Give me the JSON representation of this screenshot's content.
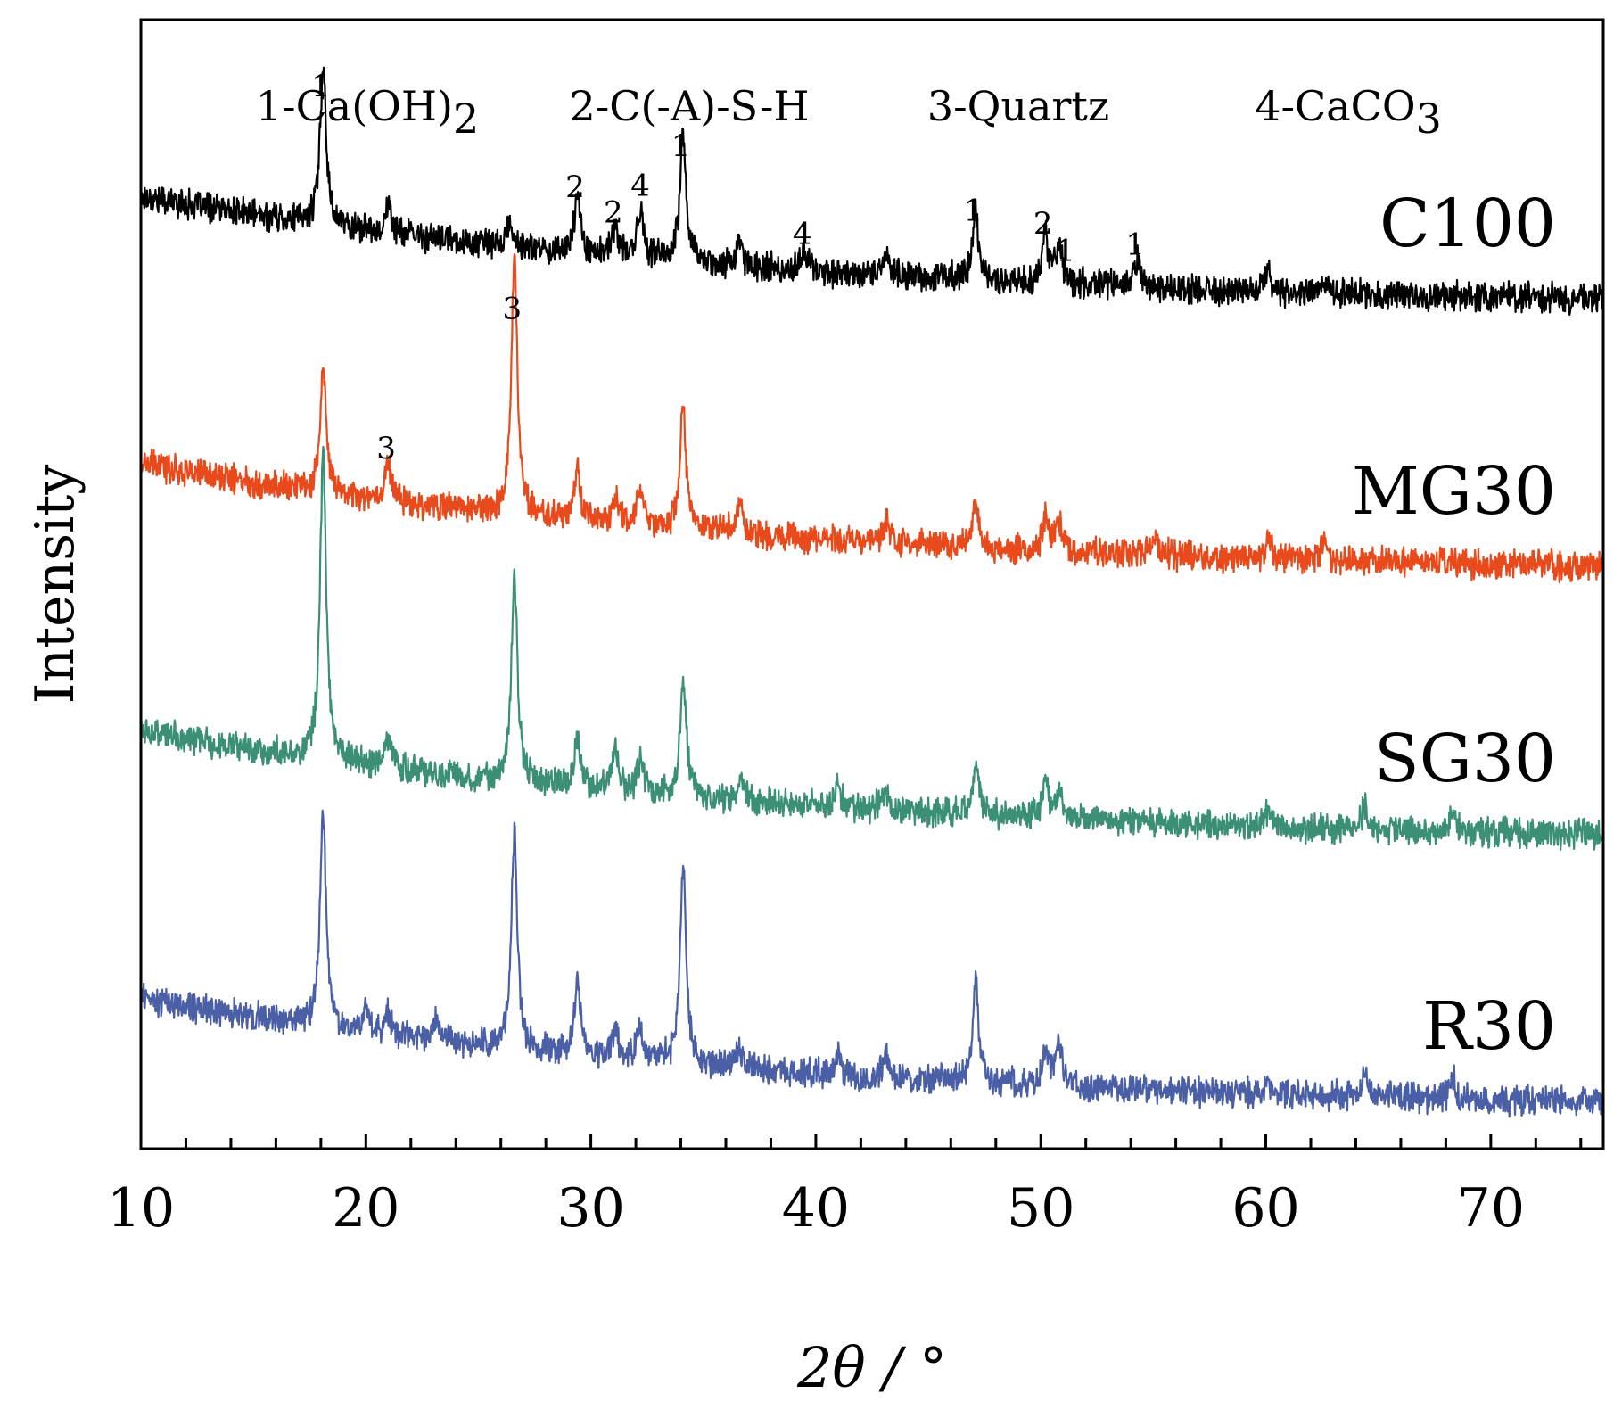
{
  "chart_data": {
    "type": "line",
    "title": "",
    "xlabel": "2θ / °",
    "ylabel": "Intensity",
    "xlim": [
      10,
      75
    ],
    "x_ticks": [
      10,
      20,
      30,
      40,
      50,
      60,
      70
    ],
    "x_tick_labels": [
      "10",
      "20",
      "30",
      "40",
      "50",
      "60",
      "70"
    ],
    "y_ticks_shown": false,
    "legend": [
      {
        "marker": "1",
        "phase_prefix": "1-Ca(OH)",
        "sub": "2"
      },
      {
        "marker": "2",
        "phase_prefix": "2-C(-A)-S-H",
        "sub": ""
      },
      {
        "marker": "3",
        "phase_prefix": "3-Quartz",
        "sub": ""
      },
      {
        "marker": "4",
        "phase_prefix": "4-CaCO",
        "sub": "3"
      }
    ],
    "series": [
      {
        "name": "C100",
        "color": "#000000",
        "offset": 3.0,
        "baseline": {
          "start": 0.55,
          "end": 0.12,
          "decay": 0.035
        },
        "peaks": [
          {
            "x": 18.1,
            "h": 0.6
          },
          {
            "x": 21.0,
            "h": 0.1
          },
          {
            "x": 26.4,
            "h": 0.08
          },
          {
            "x": 29.4,
            "h": 0.22
          },
          {
            "x": 31.1,
            "h": 0.1
          },
          {
            "x": 32.2,
            "h": 0.18
          },
          {
            "x": 34.1,
            "h": 0.48
          },
          {
            "x": 36.6,
            "h": 0.08
          },
          {
            "x": 39.5,
            "h": 0.07
          },
          {
            "x": 43.1,
            "h": 0.08
          },
          {
            "x": 47.1,
            "h": 0.24
          },
          {
            "x": 50.2,
            "h": 0.18
          },
          {
            "x": 50.8,
            "h": 0.15
          },
          {
            "x": 54.3,
            "h": 0.1
          },
          {
            "x": 60.1,
            "h": 0.07
          },
          {
            "x": 62.6,
            "h": 0.05
          }
        ]
      },
      {
        "name": "MG30",
        "color": "#E84A1C",
        "offset": 2.0,
        "baseline": {
          "start": 0.55,
          "end": 0.12,
          "decay": 0.035
        },
        "peaks": [
          {
            "x": 18.1,
            "h": 0.45
          },
          {
            "x": 21.0,
            "h": 0.15
          },
          {
            "x": 26.6,
            "h": 0.95
          },
          {
            "x": 29.4,
            "h": 0.18
          },
          {
            "x": 31.1,
            "h": 0.1
          },
          {
            "x": 32.2,
            "h": 0.14
          },
          {
            "x": 34.1,
            "h": 0.45
          },
          {
            "x": 36.6,
            "h": 0.1
          },
          {
            "x": 43.1,
            "h": 0.08
          },
          {
            "x": 47.1,
            "h": 0.16
          },
          {
            "x": 50.2,
            "h": 0.12
          },
          {
            "x": 50.8,
            "h": 0.1
          },
          {
            "x": 55.0,
            "h": 0.07
          },
          {
            "x": 60.1,
            "h": 0.07
          },
          {
            "x": 62.6,
            "h": 0.07
          }
        ]
      },
      {
        "name": "SG30",
        "color": "#3A8F76",
        "offset": 1.0,
        "baseline": {
          "start": 0.55,
          "end": 0.12,
          "decay": 0.035
        },
        "peaks": [
          {
            "x": 18.1,
            "h": 1.15
          },
          {
            "x": 21.0,
            "h": 0.12
          },
          {
            "x": 26.6,
            "h": 0.78
          },
          {
            "x": 29.4,
            "h": 0.18
          },
          {
            "x": 31.1,
            "h": 0.16
          },
          {
            "x": 32.2,
            "h": 0.12
          },
          {
            "x": 34.1,
            "h": 0.45
          },
          {
            "x": 36.6,
            "h": 0.08
          },
          {
            "x": 41.0,
            "h": 0.07
          },
          {
            "x": 43.1,
            "h": 0.08
          },
          {
            "x": 47.1,
            "h": 0.2
          },
          {
            "x": 50.2,
            "h": 0.14
          },
          {
            "x": 50.8,
            "h": 0.1
          },
          {
            "x": 60.1,
            "h": 0.06
          },
          {
            "x": 64.4,
            "h": 0.08
          },
          {
            "x": 68.3,
            "h": 0.06
          }
        ]
      },
      {
        "name": "R30",
        "color": "#4A5FA5",
        "offset": 0.0,
        "baseline": {
          "start": 0.55,
          "end": 0.12,
          "decay": 0.035
        },
        "peaks": [
          {
            "x": 18.1,
            "h": 0.8
          },
          {
            "x": 20.0,
            "h": 0.08
          },
          {
            "x": 21.0,
            "h": 0.08
          },
          {
            "x": 23.1,
            "h": 0.08
          },
          {
            "x": 26.6,
            "h": 0.8
          },
          {
            "x": 29.4,
            "h": 0.28
          },
          {
            "x": 31.1,
            "h": 0.1
          },
          {
            "x": 32.2,
            "h": 0.12
          },
          {
            "x": 34.1,
            "h": 0.75
          },
          {
            "x": 36.6,
            "h": 0.08
          },
          {
            "x": 41.0,
            "h": 0.06
          },
          {
            "x": 43.1,
            "h": 0.08
          },
          {
            "x": 47.1,
            "h": 0.36
          },
          {
            "x": 50.2,
            "h": 0.14
          },
          {
            "x": 50.8,
            "h": 0.18
          },
          {
            "x": 60.1,
            "h": 0.06
          },
          {
            "x": 64.4,
            "h": 0.08
          },
          {
            "x": 68.3,
            "h": 0.08
          }
        ]
      }
    ],
    "peak_annotations": [
      {
        "text": "1",
        "x": 18.0,
        "series": "C100"
      },
      {
        "text": "2",
        "x": 29.3,
        "series": "C100"
      },
      {
        "text": "2",
        "x": 31.0,
        "series": "C100"
      },
      {
        "text": "4",
        "x": 32.2,
        "series": "C100"
      },
      {
        "text": "1",
        "x": 34.0,
        "series": "C100"
      },
      {
        "text": "4",
        "x": 39.4,
        "series": "C100"
      },
      {
        "text": "1",
        "x": 47.0,
        "series": "C100"
      },
      {
        "text": "2",
        "x": 50.1,
        "series": "C100"
      },
      {
        "text": "1",
        "x": 51.1,
        "series": "C100"
      },
      {
        "text": "1",
        "x": 54.2,
        "series": "C100"
      },
      {
        "text": "3",
        "x": 26.5,
        "series": "MG30"
      },
      {
        "text": "3",
        "x": 20.9,
        "series": "MG30"
      }
    ]
  }
}
